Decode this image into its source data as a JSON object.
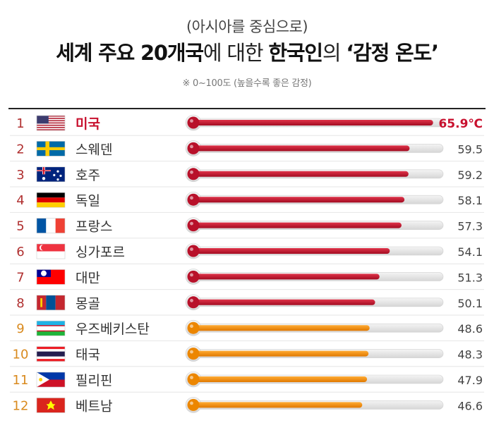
{
  "header": {
    "subtitle": "(아시아를 중심으로)",
    "title_parts": [
      {
        "text": "세계 주요 20개국",
        "bold": true
      },
      {
        "text": "에 대한 ",
        "bold": false
      },
      {
        "text": "한국인",
        "bold": true
      },
      {
        "text": "의 ",
        "bold": false
      },
      {
        "text": "‘감정 온도’",
        "bold": true
      }
    ],
    "note": "※ 0~100도 (높을수록 좋은 감정)"
  },
  "chart_data": {
    "type": "bar",
    "title": "세계 주요 20개국에 대한 한국인의 ‘감정 온도’",
    "subtitle": "(아시아를 중심으로)",
    "note": "※ 0~100도 (높을수록 좋은 감정)",
    "orientation": "horizontal",
    "xlim": [
      0,
      100
    ],
    "unit": "℃",
    "ranks": [
      1,
      2,
      3,
      4,
      5,
      6,
      7,
      8,
      9,
      10,
      11,
      12
    ],
    "categories": [
      "미국",
      "스웨덴",
      "호주",
      "독일",
      "프랑스",
      "싱가포르",
      "대만",
      "몽골",
      "우즈베키스탄",
      "태국",
      "필리핀",
      "베트남"
    ],
    "values": [
      65.9,
      59.5,
      59.2,
      58.1,
      57.3,
      54.1,
      51.3,
      50.1,
      48.6,
      48.3,
      47.9,
      46.6
    ],
    "value_labels": [
      "65.9℃",
      "59.5",
      "59.2",
      "58.1",
      "57.3",
      "54.1",
      "51.3",
      "50.1",
      "48.6",
      "48.3",
      "47.9",
      "46.6"
    ],
    "flags": [
      "usa-flag",
      "sweden-flag",
      "australia-flag",
      "germany-flag",
      "france-flag",
      "singapore-flag",
      "taiwan-flag",
      "mongolia-flag",
      "uzbekistan-flag",
      "thailand-flag",
      "philippines-flag",
      "vietnam-flag"
    ],
    "colors": {
      "high": "#c8102e",
      "low": "#f08c00",
      "track": "#e2e2e2",
      "rank_high": "#b03030",
      "rank_low": "#d98a1e",
      "highlight_text": "#c8102e"
    },
    "threshold_rank": 8,
    "highlight_index": 0
  }
}
